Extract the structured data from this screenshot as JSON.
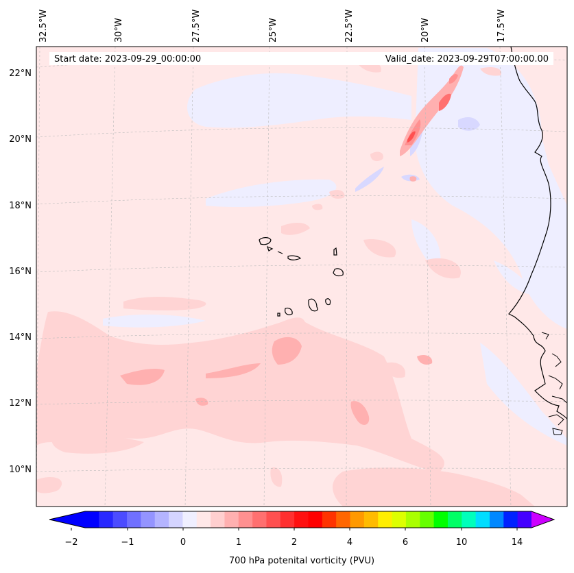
{
  "header": {
    "start_date": "Start date: 2023-09-29_00:00:00",
    "valid_date": "Valid_date: 2023-09-29T07:00:00.00"
  },
  "lon_labels": [
    "32.5°W",
    "30°W",
    "27.5°W",
    "25°W",
    "22.5°W",
    "20°W",
    "17.5°W"
  ],
  "lat_labels": [
    "22°N",
    "20°N",
    "18°N",
    "16°N",
    "14°N",
    "12°N",
    "10°N"
  ],
  "colorbar": {
    "title": "700 hPa potenital vorticity (PVU)",
    "tick_labels": [
      "−2",
      "−1",
      "0",
      "1",
      "2",
      "4",
      "6",
      "10",
      "14"
    ],
    "levels": [
      -2,
      -1.75,
      -1.5,
      -1.25,
      -1,
      -0.75,
      -0.5,
      -0.25,
      0,
      0.25,
      0.5,
      0.75,
      1,
      1.25,
      1.5,
      1.75,
      2,
      2.5,
      3,
      3.5,
      4,
      4.5,
      5,
      5.5,
      6,
      7,
      8,
      9,
      10,
      11,
      12,
      13,
      14
    ],
    "colors": [
      "#0000ff",
      "#2828ff",
      "#4c4cff",
      "#7070ff",
      "#9494ff",
      "#b4b4ff",
      "#d4d4ff",
      "#efefff",
      "#ffe8e8",
      "#ffcfcf",
      "#ffb0b0",
      "#ff9090",
      "#ff7070",
      "#ff5050",
      "#ff3030",
      "#ff1010",
      "#ff0000",
      "#ff3300",
      "#ff6600",
      "#ff9900",
      "#ffbb00",
      "#ffee00",
      "#ddff00",
      "#aaff00",
      "#66ff00",
      "#00ff00",
      "#00ff66",
      "#00ffbb",
      "#00ddff",
      "#0088ff",
      "#0022ff",
      "#4400ff"
    ],
    "under_color": "#0000ff",
    "over_color": "#cc00ff"
  },
  "map": {
    "background": "#ffe8e8",
    "coastline_color": "#000000"
  }
}
